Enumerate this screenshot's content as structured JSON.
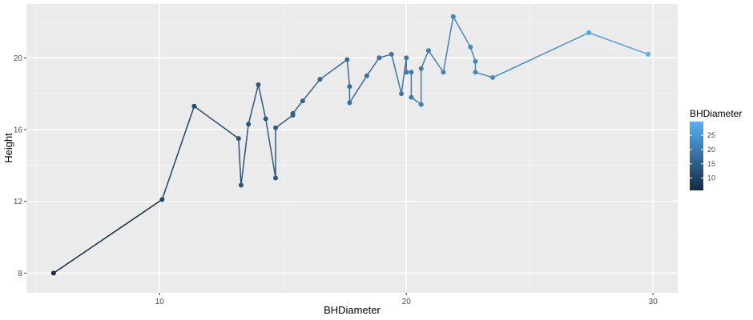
{
  "chart_data": {
    "type": "line",
    "title": "",
    "xlabel": "BHDiameter",
    "ylabel": "Height",
    "xlim": [
      4.6,
      31.0
    ],
    "ylim": [
      6.9,
      23.0
    ],
    "xticks": [
      10,
      20,
      30
    ],
    "yticks": [
      8,
      12,
      16,
      20
    ],
    "grid": true,
    "color_scale": {
      "name": "BHDiameter",
      "low_color": "#132B43",
      "high_color": "#56B1F7",
      "min": 5.7,
      "max": 29.8,
      "breaks": [
        10,
        15,
        20,
        25
      ],
      "legend_position": "right"
    },
    "x": [
      5.7,
      10.1,
      11.4,
      13.2,
      13.3,
      13.6,
      14.0,
      14.3,
      14.7,
      14.7,
      15.4,
      15.4,
      15.8,
      16.5,
      17.6,
      17.7,
      17.7,
      18.4,
      18.9,
      19.4,
      19.8,
      20.0,
      20.0,
      20.2,
      20.2,
      20.6,
      20.6,
      20.9,
      21.5,
      21.9,
      22.6,
      22.8,
      22.8,
      23.5,
      27.4,
      29.8
    ],
    "y": [
      8.0,
      12.1,
      17.3,
      15.5,
      12.9,
      16.3,
      18.5,
      16.6,
      13.3,
      16.1,
      16.8,
      16.9,
      17.6,
      18.8,
      19.9,
      18.4,
      17.5,
      19.0,
      20.0,
      20.2,
      18.0,
      20.0,
      19.2,
      19.2,
      17.8,
      17.4,
      19.4,
      20.4,
      19.2,
      22.3,
      20.6,
      19.8,
      19.2,
      18.9,
      21.4,
      20.2
    ]
  }
}
